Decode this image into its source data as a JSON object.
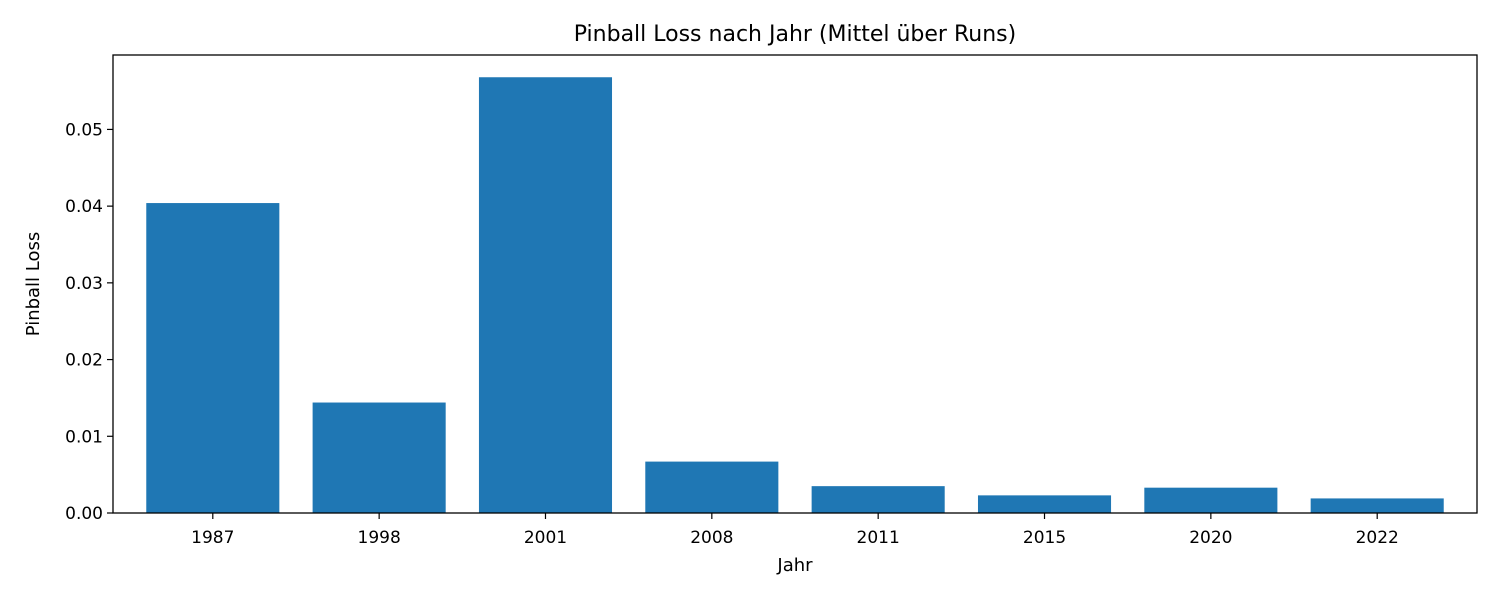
{
  "chart_data": {
    "type": "bar",
    "title": "Pinball Loss nach Jahr (Mittel über Runs)",
    "xlabel": "Jahr",
    "ylabel": "Pinball Loss",
    "categories": [
      "1987",
      "1998",
      "2001",
      "2008",
      "2011",
      "2015",
      "2020",
      "2022"
    ],
    "values": [
      0.0404,
      0.0144,
      0.0568,
      0.0067,
      0.0035,
      0.0023,
      0.0033,
      0.0019
    ],
    "ylim": [
      0,
      0.0597
    ],
    "yticks": [
      0.0,
      0.01,
      0.02,
      0.03,
      0.04,
      0.05
    ],
    "ytick_labels": [
      "0.00",
      "0.01",
      "0.02",
      "0.03",
      "0.04",
      "0.05"
    ],
    "grid": false,
    "colors": {
      "bar": "#1f77b4"
    }
  }
}
